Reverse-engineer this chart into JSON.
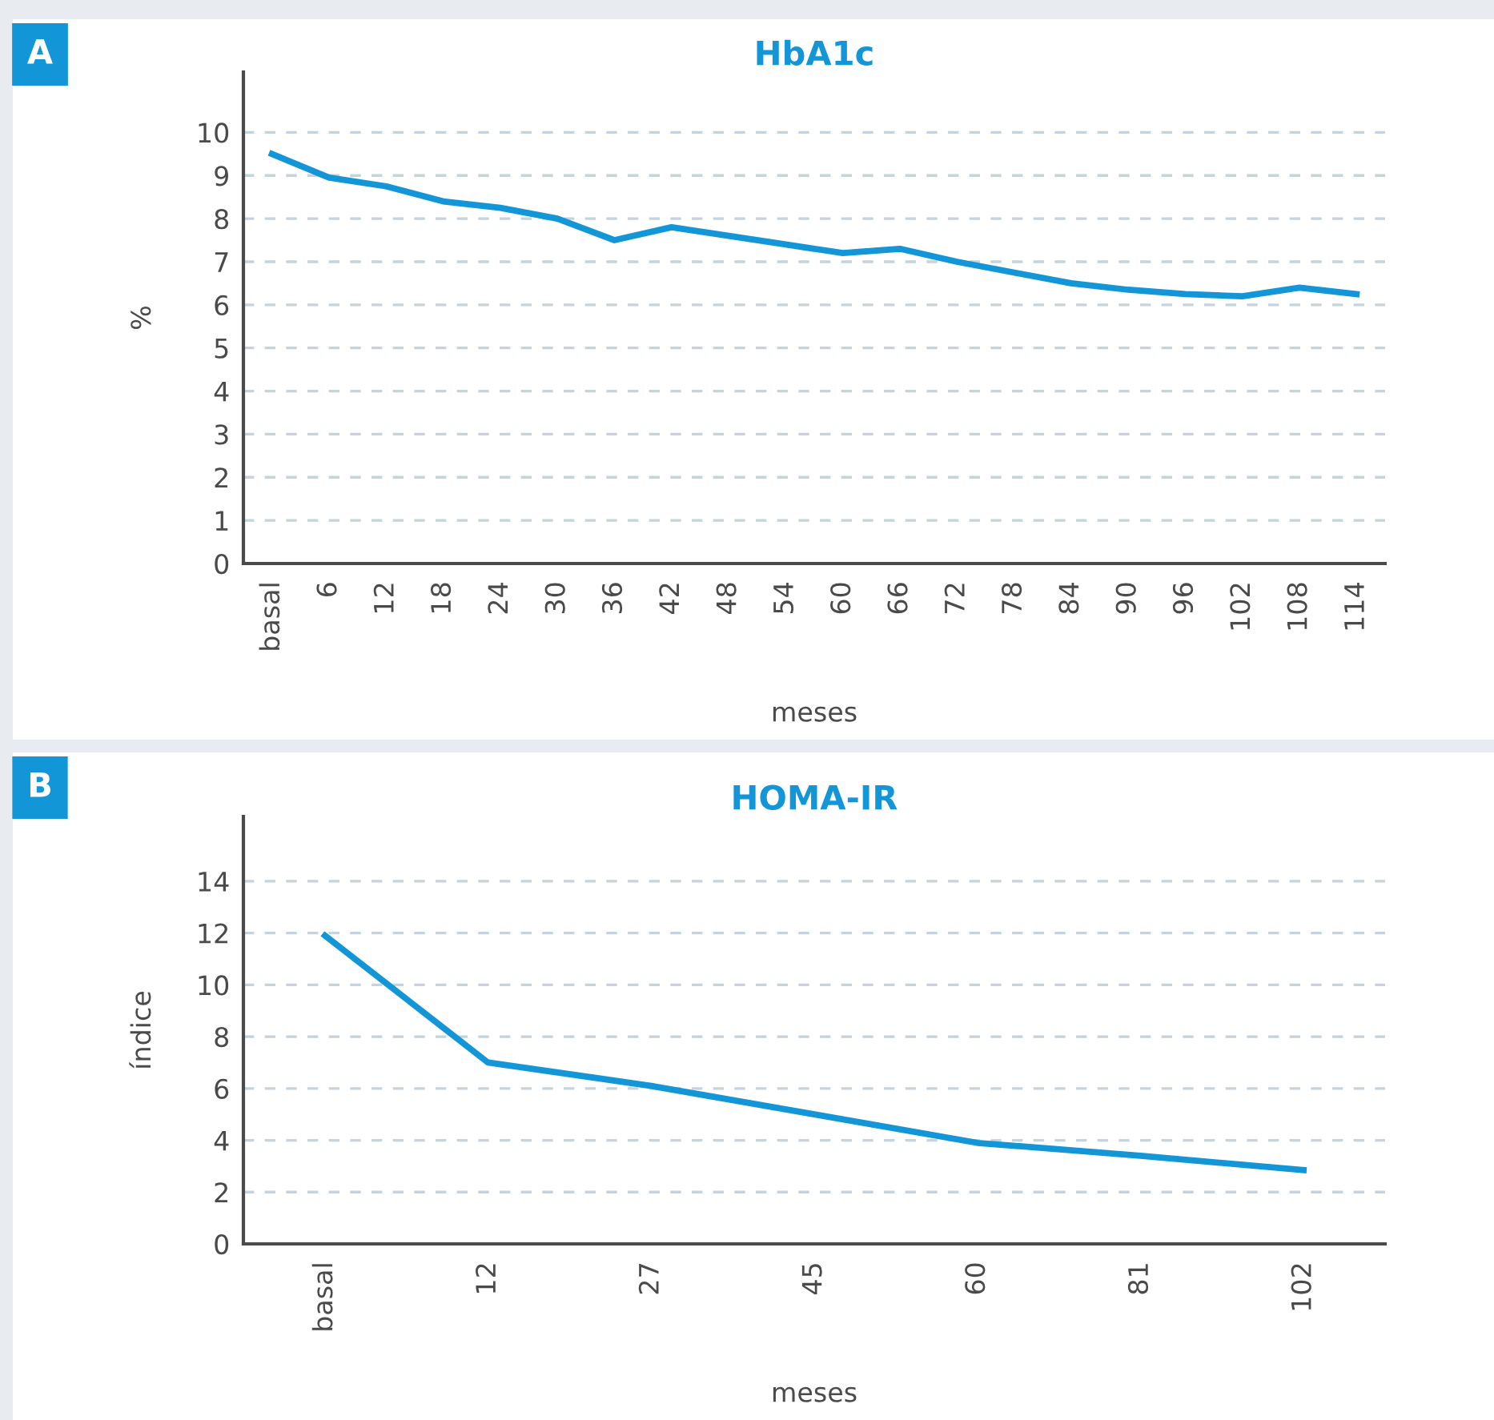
{
  "chart_data": [
    {
      "type": "line",
      "title": "HbA1c",
      "xlabel": "meses",
      "ylabel": "%",
      "annotations": [
        "A"
      ],
      "categories": [
        "basal",
        "6",
        "12",
        "18",
        "24",
        "30",
        "36",
        "42",
        "48",
        "54",
        "60",
        "66",
        "72",
        "78",
        "84",
        "90",
        "96",
        "102",
        "108",
        "114"
      ],
      "series": [
        {
          "color": "#1296d8",
          "values": [
            9.5,
            8.95,
            8.75,
            8.4,
            8.25,
            8.0,
            7.5,
            7.8,
            7.6,
            7.4,
            7.2,
            7.3,
            7.0,
            6.75,
            6.5,
            6.35,
            6.25,
            6.2,
            6.4,
            6.25
          ]
        }
      ],
      "ylim": [
        0,
        11.4
      ],
      "yticks": [
        0,
        1,
        2,
        3,
        4,
        5,
        6,
        7,
        8,
        9,
        10
      ],
      "grid": "y",
      "line_style": "solid",
      "marker": "none"
    },
    {
      "type": "line",
      "title": "HOMA-IR",
      "xlabel": "meses",
      "ylabel": "índice",
      "annotations": [
        "B"
      ],
      "categories": [
        "basal",
        "12",
        "27",
        "45",
        "60",
        "81",
        "102"
      ],
      "series": [
        {
          "color": "#1296d8",
          "values": [
            11.9,
            7.0,
            6.1,
            5.0,
            3.9,
            3.4,
            2.85
          ]
        }
      ],
      "ylim": [
        0,
        16.5
      ],
      "yticks": [
        0,
        2,
        4,
        6,
        8,
        10,
        12,
        14
      ],
      "grid": "y",
      "line_style": "solid",
      "marker": "none"
    }
  ]
}
